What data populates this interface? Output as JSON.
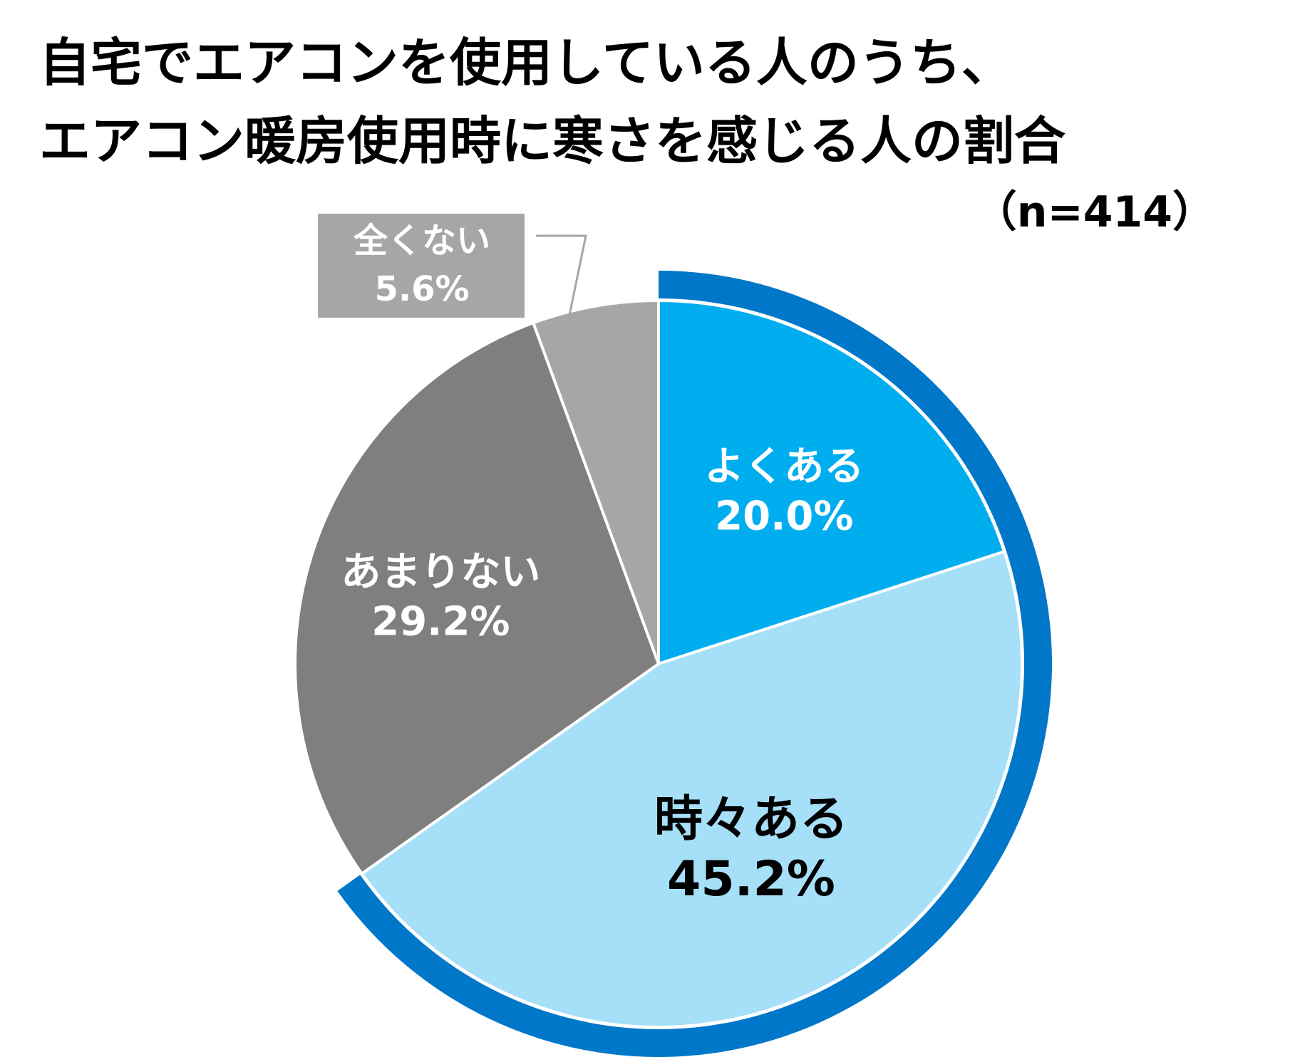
{
  "header": {
    "title_line_1": "自宅でエアコンを使用している人のうち、",
    "title_line_2": "エアコン暖房使用時に寒さを感じる人の割合",
    "sample_size": "（n=414）"
  },
  "chart_data": {
    "type": "pie",
    "title": "自宅でエアコンを使用している人のうち、エアコン暖房使用時に寒さを感じる人の割合",
    "n": 414,
    "start": "12 o'clock",
    "direction": "clockwise",
    "highlight_group": [
      "よくある",
      "時々ある"
    ],
    "slices": [
      {
        "label": "よくある",
        "value_text": "20.0%",
        "value": 20.0,
        "color": "#00aeef",
        "text_color": "#ffffff"
      },
      {
        "label": "時々ある",
        "value_text": "45.2%",
        "value": 45.2,
        "color": "#a6dff8",
        "text_color": "#000000"
      },
      {
        "label": "あまりない",
        "value_text": "29.2%",
        "value": 29.2,
        "color": "#7f7f7f",
        "text_color": "#ffffff"
      },
      {
        "label": "全くない",
        "value_text": "5.6%",
        "value": 5.6,
        "color": "#a6a6a6",
        "text_color": "#ffffff"
      }
    ],
    "highlight_ring_color": "#0077c8"
  }
}
